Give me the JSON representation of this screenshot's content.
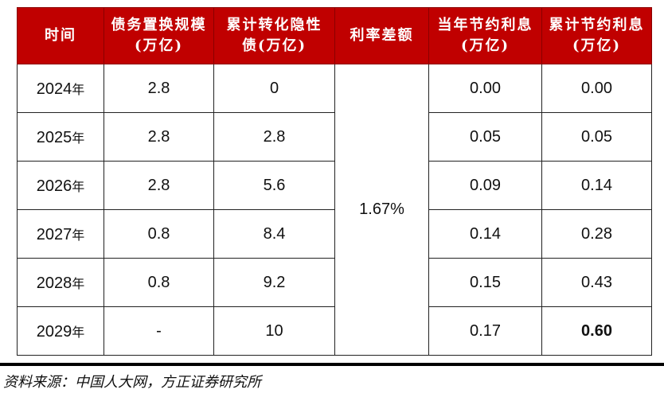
{
  "colors": {
    "header_bg": "#C00000",
    "header_text": "#FFFFFF"
  },
  "table": {
    "headers": [
      "时间",
      "债务置换规模(万亿)",
      "累计转化隐性债(万亿)",
      "利率差额",
      "当年节约利息(万亿)",
      "累计节约利息(万亿)"
    ],
    "rate_diff": "1.67%",
    "year_suffix": "年",
    "rows": [
      {
        "year": "2024",
        "swap": "2.8",
        "cum": "0",
        "annual": "0.00",
        "cum_saving": "0.00"
      },
      {
        "year": "2025",
        "swap": "2.8",
        "cum": "2.8",
        "annual": "0.05",
        "cum_saving": "0.05"
      },
      {
        "year": "2026",
        "swap": "2.8",
        "cum": "5.6",
        "annual": "0.09",
        "cum_saving": "0.14"
      },
      {
        "year": "2027",
        "swap": "0.8",
        "cum": "8.4",
        "annual": "0.14",
        "cum_saving": "0.28"
      },
      {
        "year": "2028",
        "swap": "0.8",
        "cum": "9.2",
        "annual": "0.15",
        "cum_saving": "0.43"
      },
      {
        "year": "2029",
        "swap": "-",
        "cum": "10",
        "annual": "0.17",
        "cum_saving": "0.60"
      }
    ]
  },
  "source": "资料来源：中国人大网，方正证券研究所"
}
